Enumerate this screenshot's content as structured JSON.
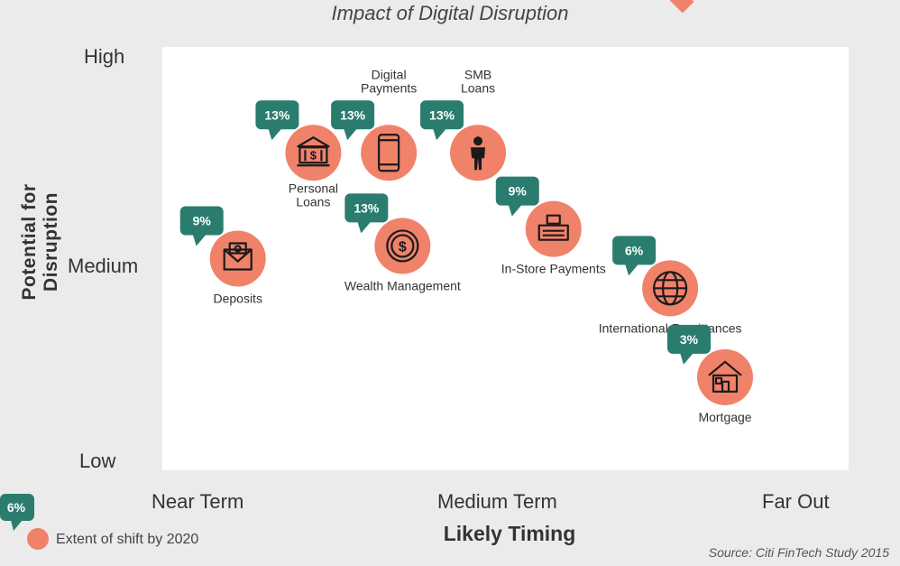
{
  "chart_data": {
    "type": "scatter",
    "title": "Impact of Digital Disruption",
    "xlabel": "Likely Timing",
    "ylabel": "Potential for Disruption",
    "x_ticks": [
      "Near Term",
      "Medium Term",
      "Far Out"
    ],
    "y_ticks": [
      "High",
      "Medium",
      "Low"
    ],
    "xlim": [
      0,
      10
    ],
    "ylim": [
      0,
      10
    ],
    "points": [
      {
        "label": "Deposits",
        "x": 1.1,
        "y": 5.0,
        "shift": "9%",
        "icon": "envelope-icon"
      },
      {
        "label": "Personal Loans",
        "x": 2.2,
        "y": 7.5,
        "shift": "13%",
        "icon": "bank-icon"
      },
      {
        "label": "Digital Payments",
        "x": 3.3,
        "y": 7.5,
        "shift": "13%",
        "icon": "smartphone-icon"
      },
      {
        "label": "Wealth Management",
        "x": 3.5,
        "y": 5.3,
        "shift": "13%",
        "icon": "dollar-coin-icon"
      },
      {
        "label": "SMB Loans",
        "x": 4.6,
        "y": 7.5,
        "shift": "13%",
        "icon": "businessperson-icon"
      },
      {
        "label": "In-Store Payments",
        "x": 5.7,
        "y": 5.7,
        "shift": "9%",
        "icon": "cash-register-icon"
      },
      {
        "label": "International Remittances",
        "x": 7.4,
        "y": 4.3,
        "shift": "6%",
        "icon": "globe-icon"
      },
      {
        "label": "Mortgage",
        "x": 8.2,
        "y": 2.2,
        "shift": "3%",
        "icon": "house-icon"
      }
    ],
    "legend": {
      "badge": "6%",
      "text": "Extent of shift by 2020"
    },
    "source": "Source: Citi FinTech Study 2015",
    "colors": {
      "bubble": "#f0826a",
      "badge": "#2a7d6e",
      "plot_bg": "#ffffff",
      "page_bg": "#ebebeb"
    }
  }
}
